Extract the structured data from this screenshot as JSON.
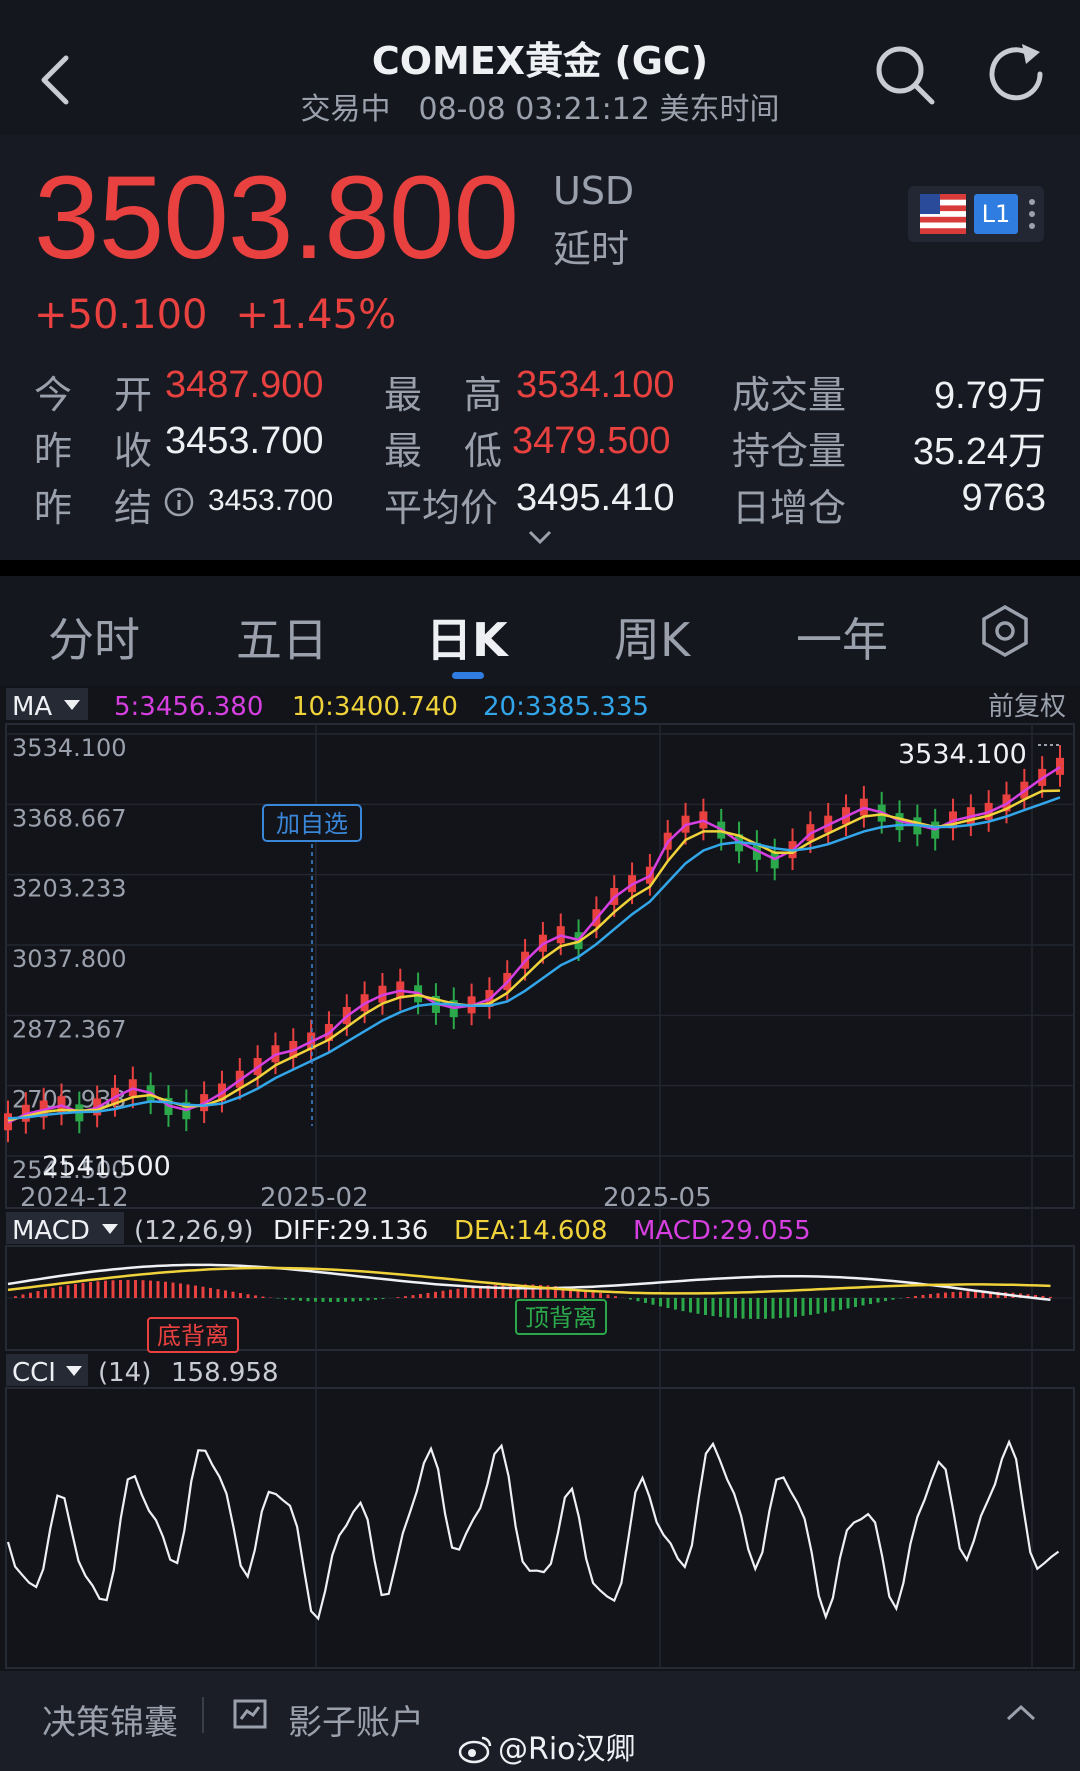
{
  "header": {
    "title": "COMEX黄金 (GC)",
    "status": "交易中",
    "time": "08-08 03:21:12 美东时间"
  },
  "quote": {
    "price": "3503.800",
    "currency": "USD",
    "delay": "延时",
    "change": "+50.100",
    "change_pct": "+1.45%",
    "level_badge": "L1"
  },
  "stats": {
    "open_label_1": "今",
    "open_label_2": "开",
    "open": "3487.900",
    "high_label_1": "最",
    "high_label_2": "高",
    "high": "3534.100",
    "volume_label": "成交量",
    "volume": "9.79万",
    "prev_close_label_1": "昨",
    "prev_close_label_2": "收",
    "prev_close": "3453.700",
    "low_label_1": "最",
    "low_label_2": "低",
    "low": "3479.500",
    "oi_label": "持仓量",
    "oi": "35.24万",
    "prev_settle_label_1": "昨",
    "prev_settle_label_2": "结",
    "prev_settle": "3453.700",
    "avg_label": "平均价",
    "avg": "3495.410",
    "oi_change_label": "日增仓",
    "oi_change": "9763"
  },
  "tabs": [
    "分时",
    "五日",
    "日K",
    "周K",
    "一年"
  ],
  "active_tab": "日K",
  "ma_bar": {
    "label": "MA",
    "ma5": "5:3456.380",
    "ma10": "10:3400.740",
    "ma20": "20:3385.335",
    "adjust": "前复权"
  },
  "main_chart": {
    "ticks": [
      "3534.100",
      "3368.667",
      "3203.233",
      "3037.800",
      "2872.367",
      "2706.933",
      "2541.500"
    ],
    "x_labels": [
      "2024-12",
      "2025-02",
      "2025-05"
    ],
    "max_label": "3534.100",
    "min_label": "2541.500",
    "add_watch": "加自选"
  },
  "macd": {
    "label": "MACD",
    "params": "(12,26,9)",
    "diff": "DIFF:29.136",
    "dea": "DEA:14.608",
    "macd": "MACD:29.055",
    "bottom_div": "底背离",
    "top_div": "顶背离"
  },
  "cci": {
    "label": "CCI",
    "params": "(14)",
    "value": "158.958"
  },
  "bottom_bar": {
    "item1": "决策锦囊",
    "item2": "影子账户"
  },
  "watermark": "@Rio汉卿",
  "colors": {
    "up": "#e8413f",
    "down": "#2aa84a",
    "ma5": "#d63fe0",
    "ma10": "#f0d23a",
    "ma20": "#33a6ea",
    "accent": "#2f7de1"
  },
  "chart_data": {
    "type": "line",
    "x_labels": [
      "2024-12",
      "2025-02",
      "2025-05"
    ],
    "y_ticks": [
      3534.1,
      3368.667,
      3203.233,
      3037.8,
      2872.367,
      2706.933,
      2541.5
    ],
    "ylim": [
      2541.5,
      3534.1
    ],
    "series": [
      {
        "name": "5",
        "values": [
          2620,
          2640,
          2650,
          2660,
          2645,
          2655,
          2680,
          2700,
          2690,
          2660,
          2650,
          2665,
          2690,
          2720,
          2750,
          2780,
          2790,
          2810,
          2830,
          2870,
          2900,
          2920,
          2930,
          2925,
          2900,
          2890,
          2895,
          2910,
          2950,
          3000,
          3040,
          3060,
          3050,
          3100,
          3150,
          3180,
          3200,
          3280,
          3320,
          3330,
          3310,
          3280,
          3260,
          3240,
          3260,
          3300,
          3320,
          3340,
          3360,
          3350,
          3330,
          3320,
          3310,
          3330,
          3340,
          3350,
          3370,
          3400,
          3430,
          3456
        ]
      },
      {
        "name": "10",
        "values": [
          2625,
          2635,
          2645,
          2650,
          2648,
          2650,
          2665,
          2680,
          2685,
          2670,
          2658,
          2660,
          2675,
          2700,
          2725,
          2755,
          2775,
          2795,
          2815,
          2845,
          2875,
          2900,
          2915,
          2920,
          2910,
          2900,
          2895,
          2900,
          2925,
          2965,
          3005,
          3035,
          3045,
          3075,
          3115,
          3150,
          3175,
          3235,
          3285,
          3305,
          3305,
          3295,
          3275,
          3255,
          3255,
          3280,
          3300,
          3320,
          3340,
          3345,
          3335,
          3325,
          3315,
          3322,
          3332,
          3342,
          3358,
          3380,
          3400,
          3401
        ]
      },
      {
        "name": "20",
        "values": [
          2630,
          2632,
          2638,
          2642,
          2645,
          2646,
          2652,
          2662,
          2670,
          2668,
          2662,
          2660,
          2665,
          2680,
          2700,
          2725,
          2745,
          2765,
          2785,
          2810,
          2835,
          2860,
          2880,
          2895,
          2900,
          2898,
          2895,
          2895,
          2905,
          2930,
          2960,
          2990,
          3010,
          3040,
          3075,
          3110,
          3140,
          3185,
          3230,
          3260,
          3275,
          3280,
          3275,
          3265,
          3260,
          3265,
          3275,
          3290,
          3305,
          3315,
          3320,
          3320,
          3315,
          3316,
          3320,
          3328,
          3340,
          3355,
          3370,
          3385
        ]
      }
    ]
  }
}
